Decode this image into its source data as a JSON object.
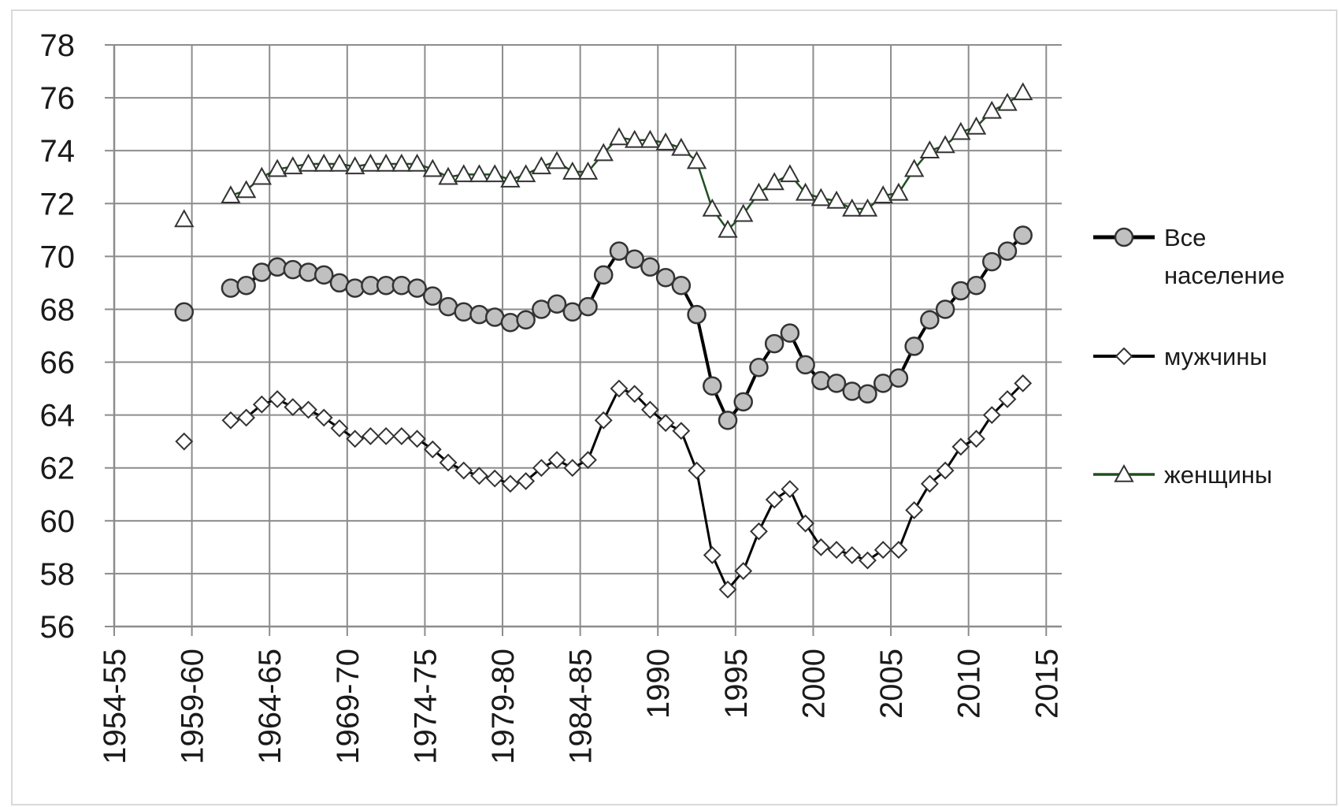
{
  "chart_data": {
    "type": "line",
    "title": "",
    "xlabel": "",
    "ylabel": "",
    "ylim": [
      56,
      78
    ],
    "yticks": [
      56,
      58,
      60,
      62,
      64,
      66,
      68,
      70,
      72,
      74,
      76,
      78
    ],
    "xlim": [
      1955,
      2016
    ],
    "xtick_labels": [
      {
        "year": 1955,
        "label": "1954-55"
      },
      {
        "year": 1960,
        "label": "1959-60"
      },
      {
        "year": 1965,
        "label": "1964-65"
      },
      {
        "year": 1970,
        "label": "1969-70"
      },
      {
        "year": 1975,
        "label": "1974-75"
      },
      {
        "year": 1980,
        "label": "1979-80"
      },
      {
        "year": 1985,
        "label": "1984-85"
      },
      {
        "year": 1990,
        "label": "1990"
      },
      {
        "year": 1995,
        "label": "1995"
      },
      {
        "year": 2000,
        "label": "2000"
      },
      {
        "year": 2005,
        "label": "2005"
      },
      {
        "year": 2010,
        "label": "2010"
      },
      {
        "year": 2015,
        "label": "2015"
      }
    ],
    "grid": true,
    "legend_position": "right",
    "x": [
      1959.5,
      1962.5,
      1963.5,
      1964.5,
      1965.5,
      1966.5,
      1967.5,
      1968.5,
      1969.5,
      1970.5,
      1971.5,
      1972.5,
      1973.5,
      1974.5,
      1975.5,
      1976.5,
      1977.5,
      1978.5,
      1979.5,
      1980.5,
      1981.5,
      1982.5,
      1983.5,
      1984.5,
      1985.5,
      1986.5,
      1987.5,
      1988.5,
      1989.5,
      1990.5,
      1991.5,
      1992.5,
      1993.5,
      1994.5,
      1995.5,
      1996.5,
      1997.5,
      1998.5,
      1999.5,
      2000.5,
      2001.5,
      2002.5,
      2003.5,
      2004.5,
      2005.5,
      2006.5,
      2007.5,
      2008.5,
      2009.5,
      2010.5,
      2011.5,
      2012.5,
      2013.5
    ],
    "series": [
      {
        "name": "Все население",
        "color": "#000000",
        "marker": "circle",
        "marker_fill": "#c0c0c0",
        "values": [
          67.9,
          68.8,
          68.9,
          69.4,
          69.6,
          69.5,
          69.4,
          69.3,
          69.0,
          68.8,
          68.9,
          68.9,
          68.9,
          68.8,
          68.5,
          68.1,
          67.9,
          67.8,
          67.7,
          67.5,
          67.6,
          68.0,
          68.2,
          67.9,
          68.1,
          69.3,
          70.2,
          69.9,
          69.6,
          69.2,
          68.9,
          67.8,
          65.1,
          63.8,
          64.5,
          65.8,
          66.7,
          67.1,
          65.9,
          65.3,
          65.2,
          64.9,
          64.8,
          65.2,
          65.4,
          66.6,
          67.6,
          68.0,
          68.7,
          68.9,
          69.8,
          70.2,
          70.8
        ]
      },
      {
        "name": "мужчины",
        "color": "#000000",
        "marker": "diamond",
        "marker_fill": "#ffffff",
        "values": [
          63.0,
          63.8,
          63.9,
          64.4,
          64.6,
          64.3,
          64.2,
          63.9,
          63.5,
          63.1,
          63.2,
          63.2,
          63.2,
          63.1,
          62.7,
          62.2,
          61.9,
          61.7,
          61.6,
          61.4,
          61.5,
          62.0,
          62.3,
          62.0,
          62.3,
          63.8,
          65.0,
          64.8,
          64.2,
          63.7,
          63.4,
          61.9,
          58.7,
          57.4,
          58.1,
          59.6,
          60.8,
          61.2,
          59.9,
          59.0,
          58.9,
          58.7,
          58.5,
          58.9,
          58.9,
          60.4,
          61.4,
          61.9,
          62.8,
          63.1,
          64.0,
          64.6,
          65.2
        ]
      },
      {
        "name": "женщины",
        "color": "#1f4f1f",
        "marker": "triangle",
        "marker_fill": "#ffffff",
        "values": [
          71.4,
          72.3,
          72.5,
          73.0,
          73.3,
          73.4,
          73.5,
          73.5,
          73.5,
          73.4,
          73.5,
          73.5,
          73.5,
          73.5,
          73.3,
          73.0,
          73.1,
          73.1,
          73.1,
          72.9,
          73.1,
          73.4,
          73.6,
          73.2,
          73.2,
          73.9,
          74.5,
          74.4,
          74.4,
          74.3,
          74.1,
          73.6,
          71.8,
          71.0,
          71.6,
          72.4,
          72.8,
          73.1,
          72.4,
          72.2,
          72.1,
          71.8,
          71.8,
          72.3,
          72.4,
          73.3,
          74.0,
          74.2,
          74.7,
          74.9,
          75.5,
          75.8,
          76.2
        ]
      }
    ]
  }
}
